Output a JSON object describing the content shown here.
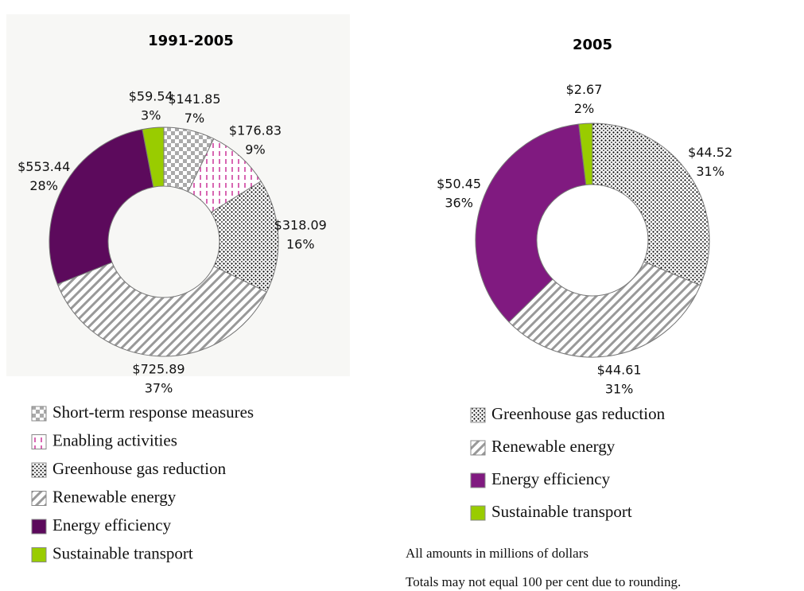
{
  "chart_data": [
    {
      "type": "donut",
      "title": "1991-2005",
      "categories": [
        "Short-term response measures",
        "Enabling activities",
        "Greenhouse gas reduction",
        "Renewable energy",
        "Energy efficiency",
        "Sustainable transport"
      ],
      "values": [
        141.85,
        176.83,
        318.09,
        725.89,
        553.44,
        59.54
      ],
      "value_labels": [
        "$141.85",
        "$176.83",
        "$318.09",
        "$725.89",
        "$553.44",
        "$59.54"
      ],
      "percent_labels": [
        "7%",
        "9%",
        "16%",
        "37%",
        "28%",
        "3%"
      ],
      "colors": [
        "#999999",
        "#cc3399",
        "#000000",
        "#999999",
        "#5c0a5c",
        "#99cc00"
      ],
      "patterns": [
        "checker",
        "dashes",
        "dots",
        "stripes",
        "solid",
        "solid"
      ]
    },
    {
      "type": "donut",
      "title": "2005",
      "categories": [
        "Greenhouse gas reduction",
        "Renewable energy",
        "Energy efficiency",
        "Sustainable transport"
      ],
      "values": [
        44.52,
        44.61,
        50.45,
        2.67
      ],
      "value_labels": [
        "$44.52",
        "$44.61",
        "$50.45",
        "$2.67"
      ],
      "percent_labels": [
        "31%",
        "31%",
        "36%",
        "2%"
      ],
      "colors": [
        "#000000",
        "#999999",
        "#801a80",
        "#99cc00"
      ],
      "patterns": [
        "dots",
        "stripes",
        "solid",
        "solid"
      ]
    }
  ],
  "notes": [
    "All amounts in millions of dollars",
    "Totals may not equal 100 per cent due to rounding."
  ]
}
